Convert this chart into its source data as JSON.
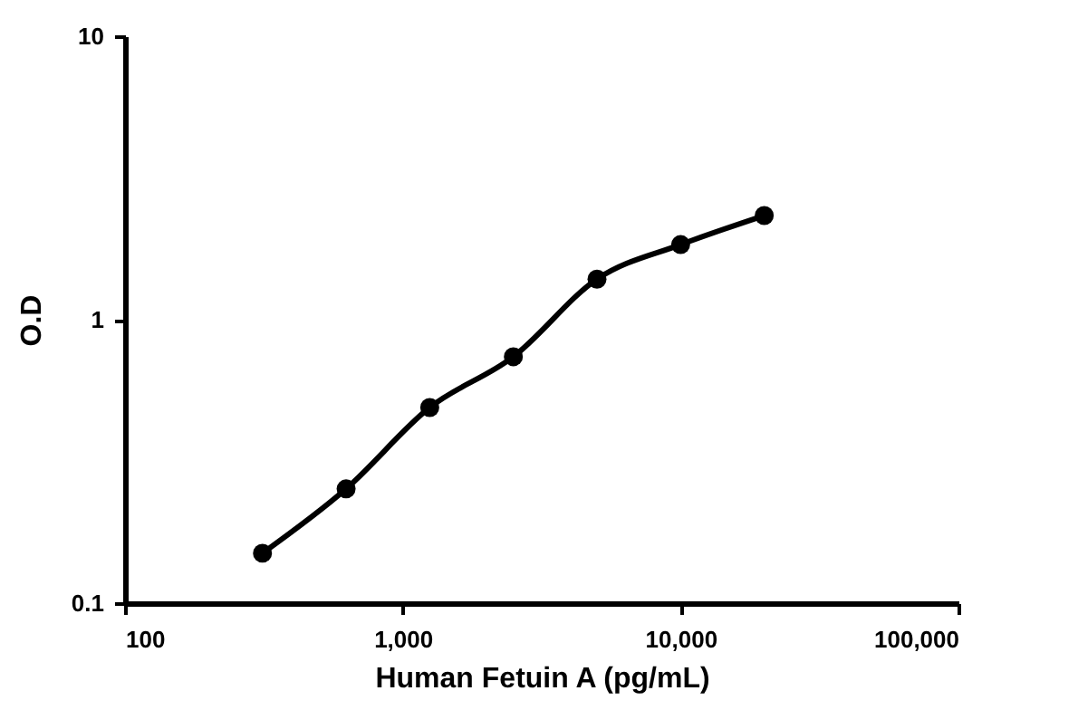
{
  "chart_data": {
    "type": "line",
    "xlabel": "Human Fetuin A (pg/mL)",
    "ylabel": "O.D",
    "x": [
      312.5,
      625,
      1250,
      2500,
      5000,
      10000,
      20000
    ],
    "series": [
      {
        "color": "#000000",
        "values": [
          0.15,
          0.253,
          0.49,
          0.74,
          1.39,
          1.84,
          2.33
        ]
      }
    ],
    "log": "xy",
    "xlim": [
      100,
      100000
    ],
    "xticks": [
      100,
      {
        "value": 1000,
        "label": "1,000"
      },
      {
        "value": 10000,
        "label": "10,000"
      },
      {
        "value": 100000,
        "label": "100,000"
      }
    ],
    "ylim": [
      0.1,
      10
    ],
    "yticks": [
      0.1,
      1,
      10
    ],
    "grid": false,
    "marker": "circle",
    "line_style": "solid"
  }
}
